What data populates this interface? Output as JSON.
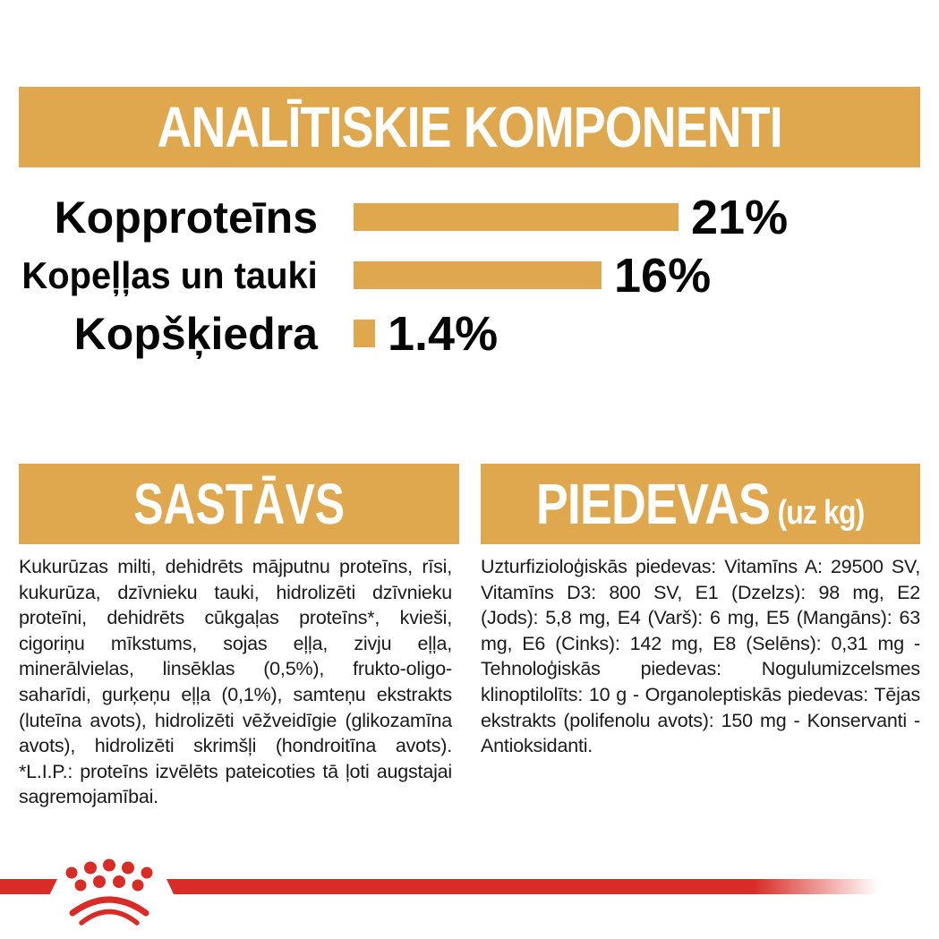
{
  "page": {
    "background_color": "#FFFFFF",
    "accent_gold": "#E0A84E",
    "brand_red": "#D92C26",
    "text_color": "#1A1A1A"
  },
  "header": {
    "title": "ANALĪTISKIE KOMPONENTI"
  },
  "chart_data": {
    "type": "bar",
    "orientation": "horizontal",
    "title": "ANALĪTISKIE KOMPONENTI",
    "categories": [
      "Kopproteīns",
      "Kopeļļas un tauki",
      "Kopšķiedra"
    ],
    "values": [
      21,
      16,
      1.4
    ],
    "value_labels": [
      "21%",
      "16%",
      "1.4%"
    ],
    "bar_color": "#E0A84E",
    "xlim": [
      0,
      21
    ],
    "grid": false,
    "legend": false
  },
  "composition": {
    "title": "SASTĀVS",
    "body": "Kukurūzas milti, dehidrēts mājputnu proteīns, rīsi, kukurūza, dzīvnieku tauki, hidrolizēti dzīvnieku proteīni, dehidrēts cūkgaļas proteīns*, kvieši, cigoriņu mīkstums, sojas eļļa, zivju eļļa, minerālvielas, linsēklas (0,5%), frukto-oligo-saharīdi, gurķeņu eļļa (0,1%), samteņu ekstrakts (luteīna avots), hidrolizēti vēžveidīgie (glikozamīna avots), hidrolizēti skrimšļi (hondroitīna avots). *L.I.P.: proteīns izvēlēts pateicoties tā ļoti augstajai sagremojamībai."
  },
  "additives": {
    "title": "PIEDEVAS",
    "title_suffix": "(uz kg)",
    "body": "Uzturfizioloģiskās piedevas: Vitamīns A: 29500 SV, Vitamīns D3: 800 SV, E1 (Dzelzs): 98 mg, E2 (Jods): 5,8 mg, E4 (Varš): 6 mg, E5 (Mangāns): 63 mg, E6 (Cinks): 142 mg, E8 (Selēns): 0,31 mg - Tehnoloģiskās piedevas: Nogulumizcelsmes klinoptilolīts: 10 g - Organoleptiskās piedevas: Tējas ekstrakts (polifenolu avots): 150 mg - Konservanti - Antioksidanti."
  },
  "footer": {
    "logo_icon": "royal-canin-crown-icon"
  }
}
